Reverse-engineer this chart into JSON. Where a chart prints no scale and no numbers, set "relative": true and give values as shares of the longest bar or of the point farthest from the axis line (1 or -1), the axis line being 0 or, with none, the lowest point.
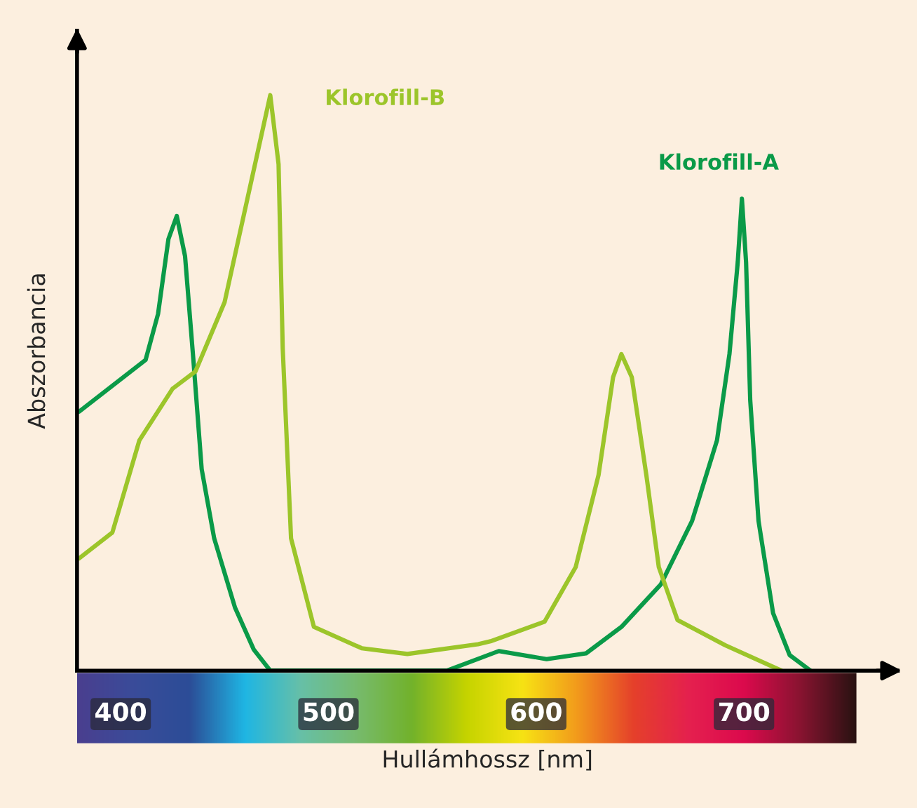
{
  "chart_data": {
    "type": "line",
    "xlabel": "Hullámhossz [nm]",
    "ylabel": "Abszorbancia",
    "relative": true,
    "xlim": [
      379,
      774
    ],
    "xticks": [
      400,
      500,
      600,
      700
    ],
    "grid": false,
    "legend": false,
    "marker": "none",
    "line_style": "solid",
    "series": [
      {
        "name": "Klorofill-A",
        "color": "#0a9a48",
        "x": [
          380,
          412,
          418,
          423,
          427,
          431,
          435,
          439,
          445,
          455,
          464,
          472,
          557,
          582,
          605,
          624,
          641,
          660,
          675,
          687,
          693,
          697,
          699,
          701,
          703,
          707,
          714,
          722,
          732
        ],
        "values": [
          0.45,
          0.54,
          0.62,
          0.75,
          0.79,
          0.72,
          0.54,
          0.35,
          0.23,
          0.11,
          0.037,
          0,
          0,
          0.034,
          0.02,
          0.03,
          0.076,
          0.15,
          0.26,
          0.4,
          0.55,
          0.71,
          0.82,
          0.71,
          0.47,
          0.26,
          0.1,
          0.027,
          0
        ]
      },
      {
        "name": "Klorofill-B",
        "color": "#9cc52a",
        "x": [
          380,
          396,
          409,
          425,
          436,
          450,
          461,
          472,
          476,
          478,
          482,
          493,
          516,
          538,
          572,
          578,
          604,
          619,
          630,
          637,
          641,
          646,
          653,
          659,
          668,
          691,
          718
        ],
        "values": [
          0.195,
          0.24,
          0.4,
          0.49,
          0.52,
          0.64,
          0.82,
          1.0,
          0.88,
          0.56,
          0.23,
          0.076,
          0.039,
          0.029,
          0.046,
          0.051,
          0.085,
          0.18,
          0.34,
          0.51,
          0.55,
          0.51,
          0.34,
          0.18,
          0.088,
          0.044,
          0
        ]
      }
    ]
  }
}
